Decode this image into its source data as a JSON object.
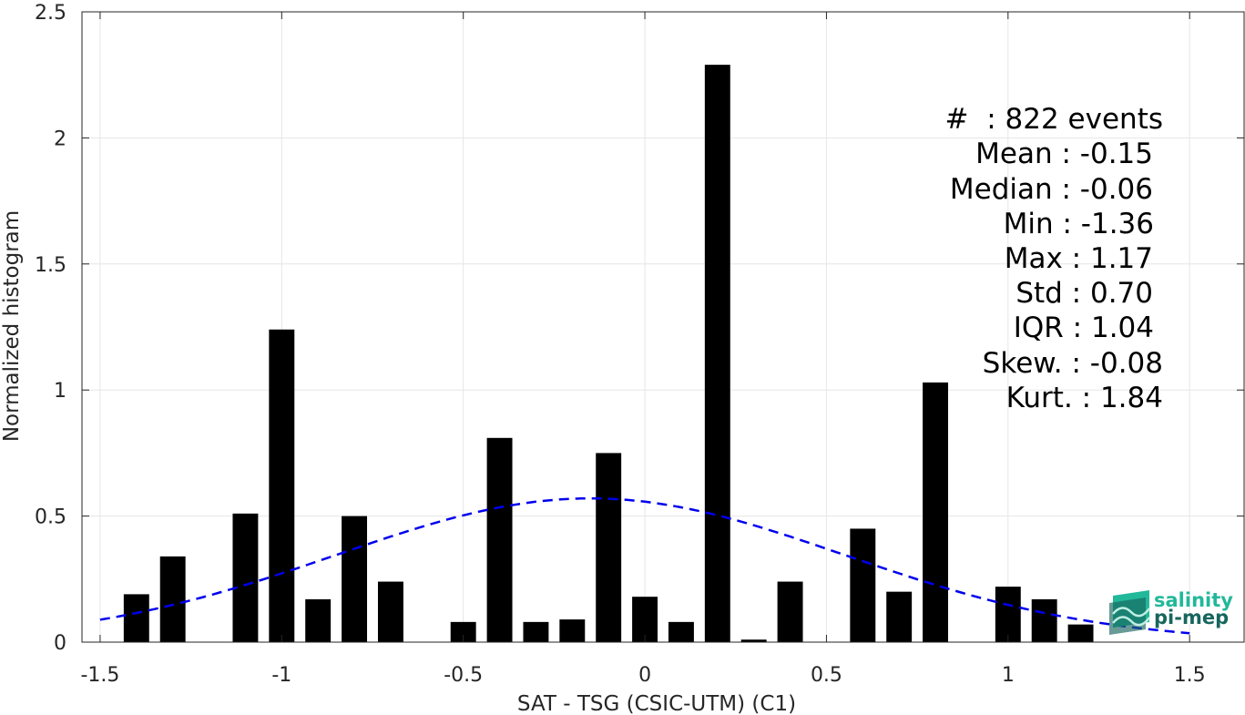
{
  "chart_data": {
    "type": "bar",
    "xlabel": "SAT - TSG (CSIC-UTM) (C1)",
    "ylabel": "Normalized histogram",
    "xlim": [
      -1.55,
      1.65
    ],
    "ylim": [
      0,
      2.5
    ],
    "xticks": [
      -1.5,
      -1,
      -0.5,
      0,
      0.5,
      1,
      1.5
    ],
    "xtick_labels": [
      "-1.5",
      "-1",
      "-0.5",
      "0",
      "0.5",
      "1",
      "1.5"
    ],
    "yticks": [
      0,
      0.5,
      1,
      1.5,
      2,
      2.5
    ],
    "ytick_labels": [
      "0",
      "0.5",
      "1",
      "1.5",
      "2",
      "2.5"
    ],
    "grid": true,
    "bar_width": 0.07,
    "bar_color": "#000000",
    "bins": [
      {
        "x": -1.4,
        "value": 0.19
      },
      {
        "x": -1.3,
        "value": 0.34
      },
      {
        "x": -1.1,
        "value": 0.51
      },
      {
        "x": -1.0,
        "value": 1.24
      },
      {
        "x": -0.9,
        "value": 0.17
      },
      {
        "x": -0.8,
        "value": 0.5
      },
      {
        "x": -0.7,
        "value": 0.24
      },
      {
        "x": -0.5,
        "value": 0.08
      },
      {
        "x": -0.4,
        "value": 0.81
      },
      {
        "x": -0.3,
        "value": 0.08
      },
      {
        "x": -0.2,
        "value": 0.09
      },
      {
        "x": -0.1,
        "value": 0.75
      },
      {
        "x": 0.0,
        "value": 0.18
      },
      {
        "x": 0.1,
        "value": 0.08
      },
      {
        "x": 0.2,
        "value": 2.29
      },
      {
        "x": 0.3,
        "value": 0.01
      },
      {
        "x": 0.4,
        "value": 0.24
      },
      {
        "x": 0.6,
        "value": 0.45
      },
      {
        "x": 0.7,
        "value": 0.2
      },
      {
        "x": 0.8,
        "value": 1.03
      },
      {
        "x": 1.0,
        "value": 0.22
      },
      {
        "x": 1.1,
        "value": 0.17
      },
      {
        "x": 1.2,
        "value": 0.07
      }
    ],
    "fit_curve": {
      "style": "dashed",
      "color": "#0000ee",
      "mean": -0.15,
      "std": 0.7,
      "x_range": [
        -1.5,
        1.5
      ]
    },
    "stats_lines": [
      "#  : 822 events",
      "Mean : -0.15",
      "Median : -0.06",
      "Min : -1.36",
      "Max : 1.17",
      "Std : 0.70",
      "IQR : 1.04",
      "Skew. : -0.08",
      "Kurt. : 1.84"
    ]
  },
  "logo": {
    "line1": "salinity",
    "line2": "pi-mep",
    "color_light": "#22b89a",
    "color_dark": "#17665e"
  }
}
